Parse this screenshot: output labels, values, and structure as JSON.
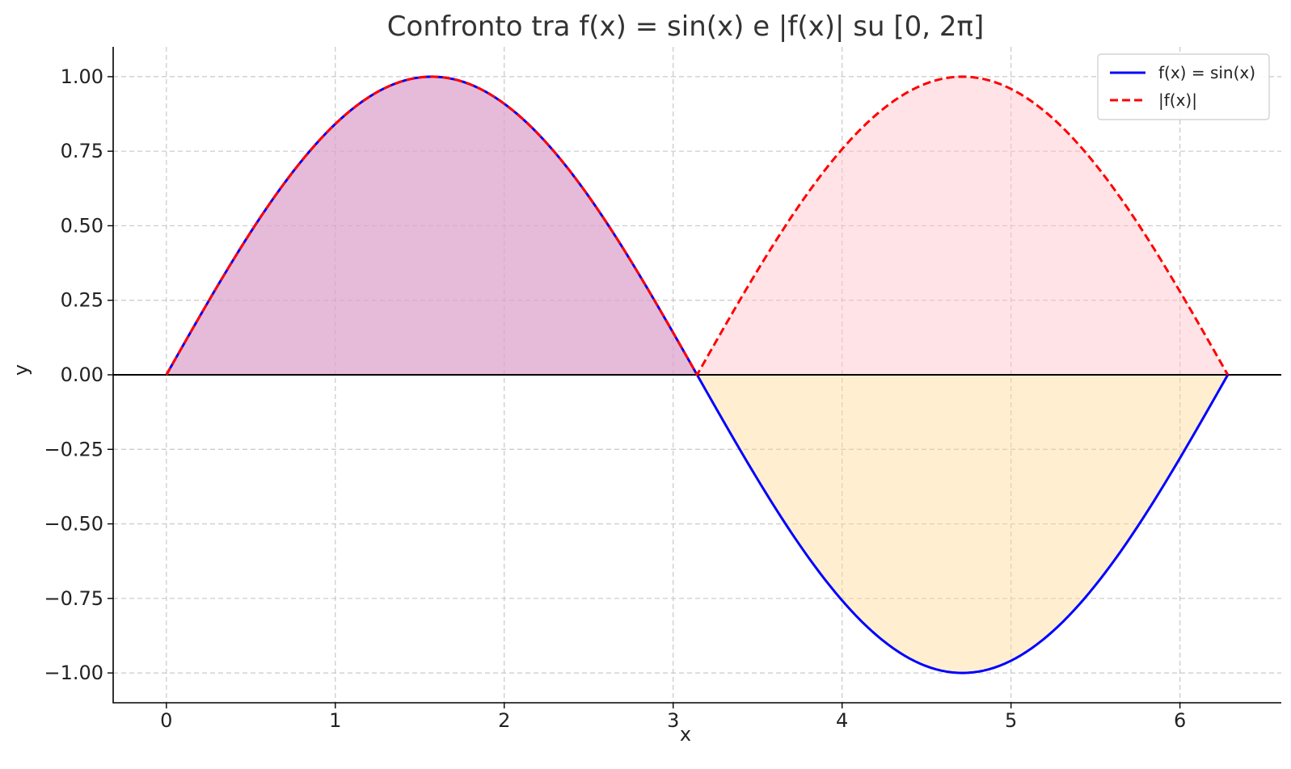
{
  "chart_data": {
    "type": "line",
    "title": "Confronto tra f(x) = sin(x) e |f(x)| su [0, 2π]",
    "xlabel": "x",
    "ylabel": "y",
    "xlim": [
      -0.315,
      6.6
    ],
    "ylim": [
      -1.1,
      1.1
    ],
    "xticks": [
      0,
      1,
      2,
      3,
      4,
      5,
      6
    ],
    "xtick_labels": [
      "0",
      "1",
      "2",
      "3",
      "4",
      "5",
      "6"
    ],
    "yticks": [
      1.0,
      0.75,
      0.5,
      0.25,
      0.0,
      -0.25,
      -0.5,
      -0.75,
      -1.0
    ],
    "ytick_labels": [
      "1.00",
      "0.75",
      "0.50",
      "0.25",
      "0.00",
      "−0.25",
      "−0.50",
      "−0.75",
      "−1.00"
    ],
    "grid": true,
    "domain": [
      0,
      6.283185307
    ],
    "sample_count": 200,
    "hline_y": 0,
    "series": [
      {
        "name": "f(x) = sin(x)",
        "function": "sin",
        "color": "#0000ff",
        "style": "solid"
      },
      {
        "name": "|f(x)|",
        "function": "abs_sin",
        "color": "#ff0000",
        "style": "dashed"
      }
    ],
    "fills": [
      {
        "between": "sin>0",
        "color": "#a070d0"
      },
      {
        "between": "abs_sin",
        "color": "#ffc0c8"
      },
      {
        "between": "sin<0",
        "color": "#ffd890"
      }
    ],
    "legend": {
      "position": "top-right",
      "entries": [
        "f(x) = sin(x)",
        "|f(x)|"
      ]
    }
  }
}
